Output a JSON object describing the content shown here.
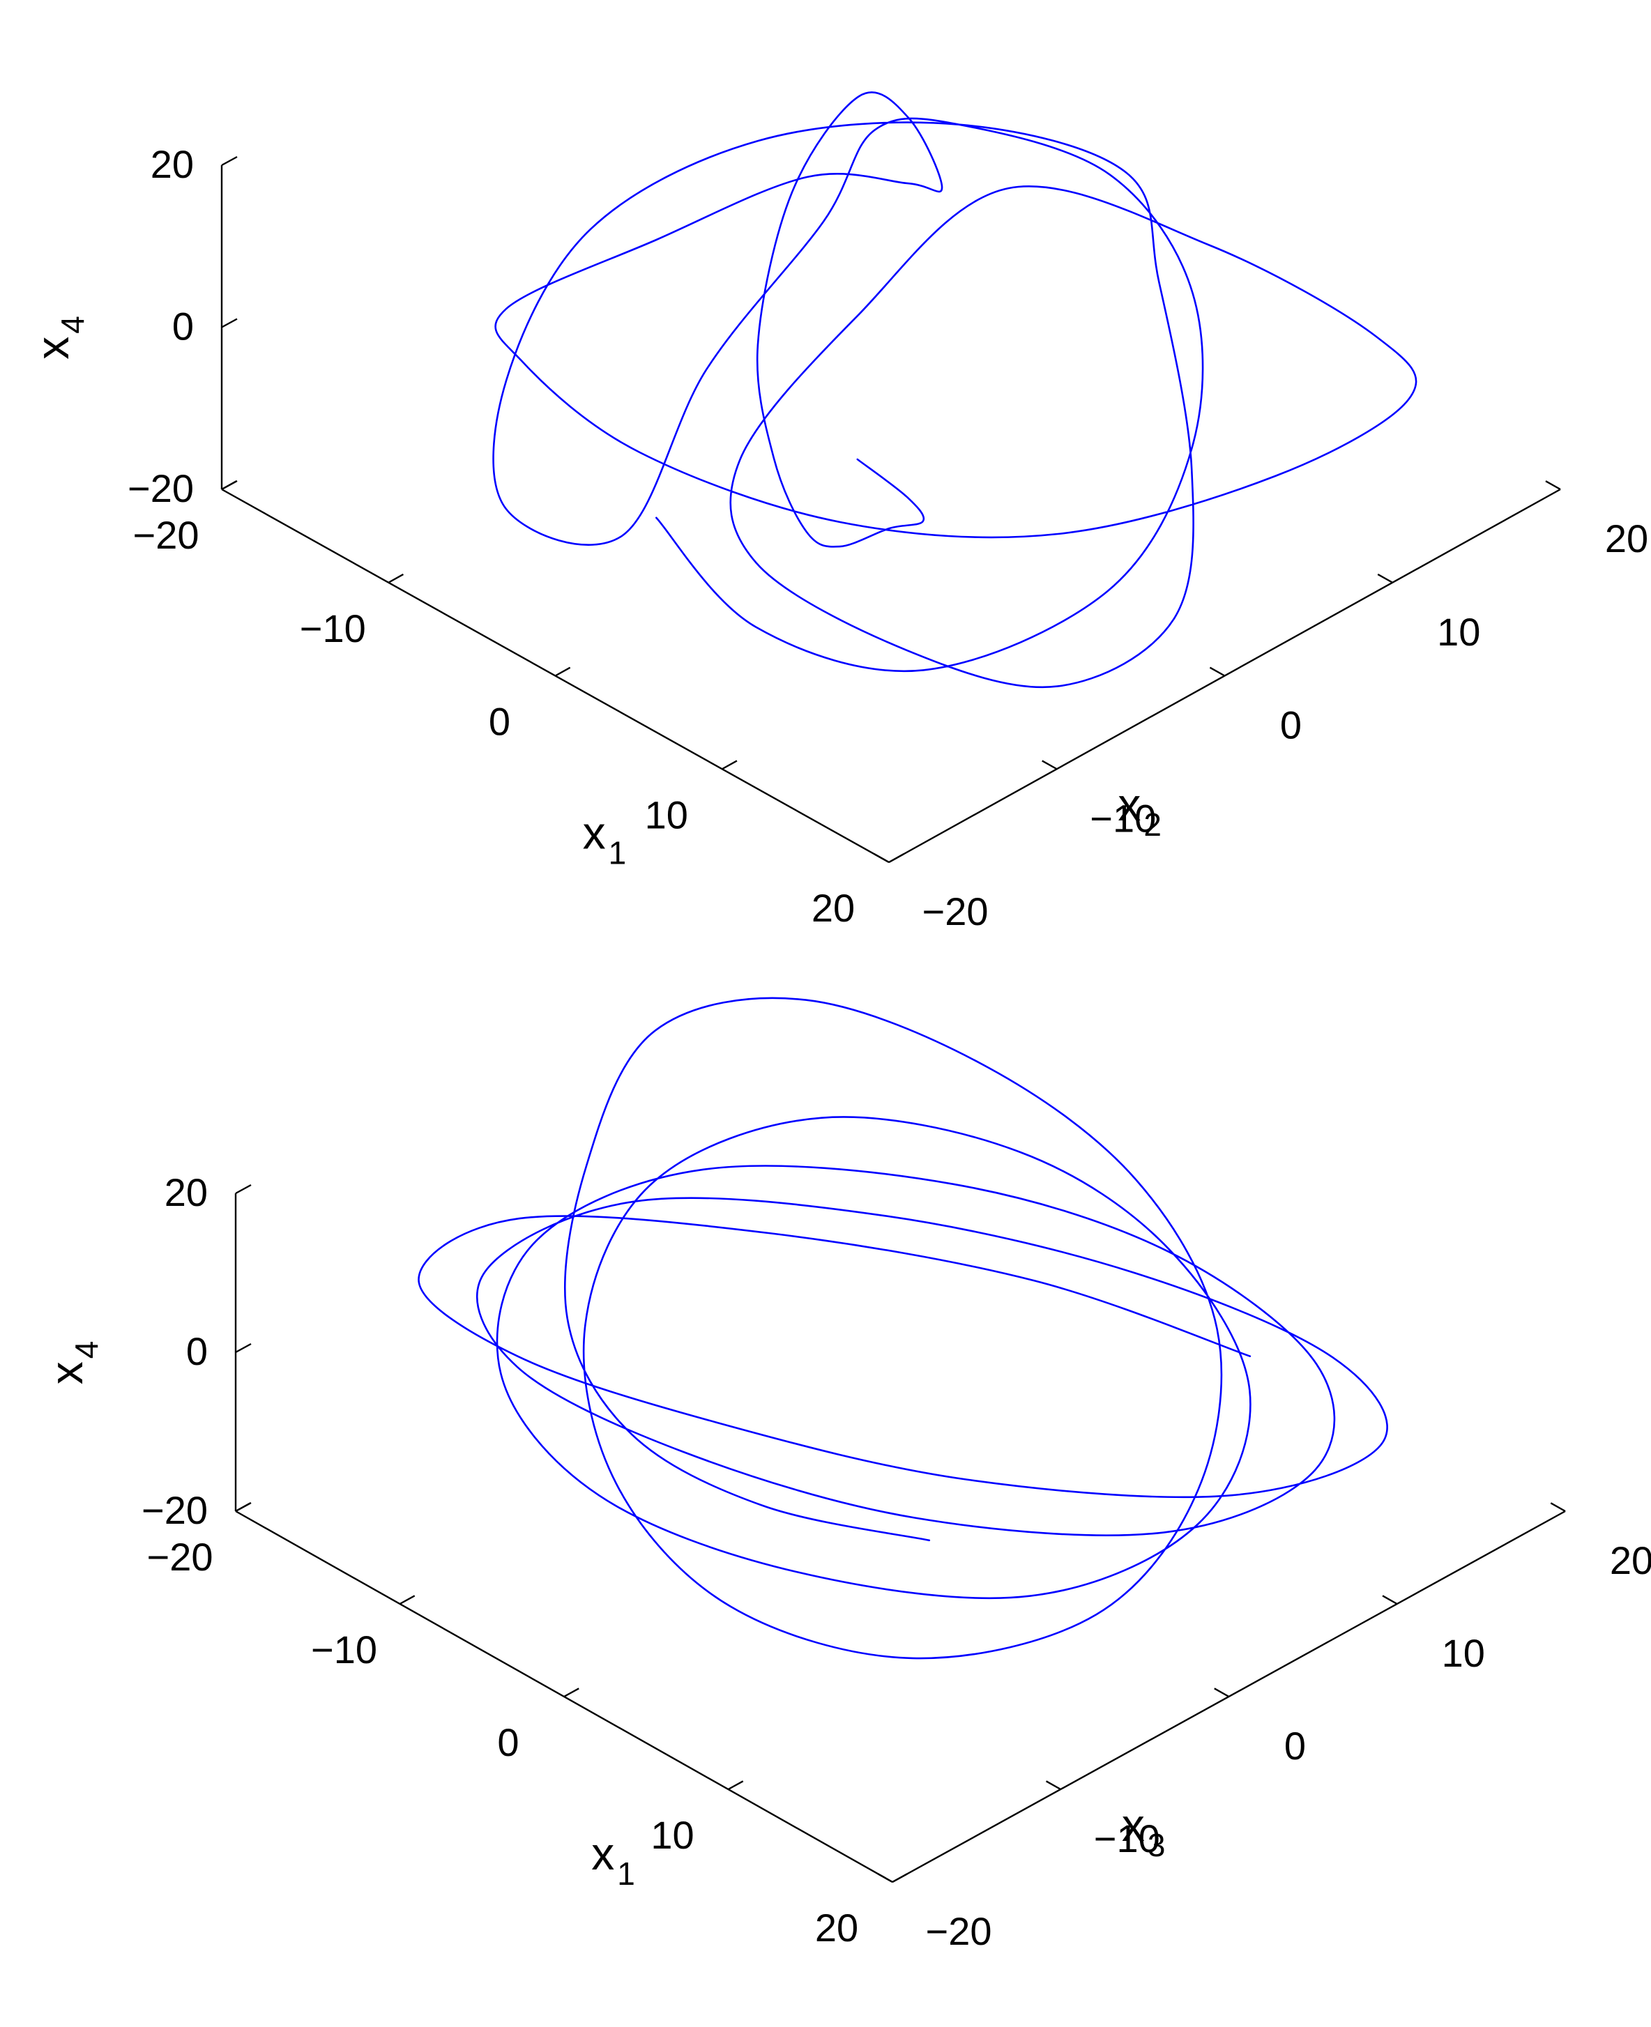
{
  "colors": {
    "trajectory": "#0000ff",
    "axes": "#000000",
    "background": "#ffffff"
  },
  "chart_data": [
    {
      "type": "line",
      "dimensions": 3,
      "view": "isometric",
      "xlabel": {
        "main": "x",
        "sub": "1"
      },
      "ylabel": {
        "main": "x",
        "sub": "2"
      },
      "zlabel": {
        "main": "x",
        "sub": "4"
      },
      "xlim": [
        -20,
        20
      ],
      "ylim": [
        -20,
        20
      ],
      "zlim": [
        -20,
        20
      ],
      "x_ticks": [
        "−20",
        "−10",
        "0",
        "10",
        "20"
      ],
      "y_ticks": [
        "−20",
        "−10",
        "0",
        "10",
        "20"
      ],
      "z_ticks": [
        "−20",
        "0",
        "20"
      ],
      "grid": false,
      "series": [
        {
          "shape": "chaotic trajectory, two mirror-symmetric lobes",
          "x": [
            -2,
            6,
            12,
            15,
            12,
            5,
            -3,
            -8,
            -5,
            1,
            2,
            1,
            -7,
            -13,
            -16,
            -14,
            -8,
            0,
            6,
            14,
            18,
            16,
            10,
            3,
            0,
            1,
            3,
            9,
            15,
            18,
            16,
            10,
            2,
            -6,
            -10,
            -9,
            -3,
            -1,
            -2,
            -6,
            -12,
            -16,
            -15,
            -10,
            -3,
            5,
            12,
            16,
            14,
            7,
            0
          ],
          "y": [
            -12,
            -14,
            -10,
            -2,
            6,
            13,
            16,
            12,
            4,
            -5,
            -13,
            -17,
            -16,
            -10,
            -2,
            6,
            12,
            14,
            10,
            4,
            -1,
            -6,
            -9,
            -11,
            -9,
            -3,
            4,
            10,
            14,
            13,
            7,
            0,
            -5,
            -9,
            -12,
            -14,
            -11,
            -4,
            3,
            9,
            13,
            14,
            9,
            2,
            -4,
            -10,
            -15,
            -16,
            -12,
            -6,
            -2
          ],
          "z": [
            -12,
            -14,
            -17,
            -13,
            -8,
            -5,
            -3,
            2,
            14,
            20,
            12,
            -5,
            -12,
            -10,
            -4,
            0,
            2,
            3,
            1,
            -6,
            -14,
            -19,
            -18,
            -13,
            -6,
            6,
            16,
            9,
            0,
            -3,
            -8,
            -14,
            -16,
            -12,
            -2,
            8,
            20,
            22,
            12,
            0,
            -3,
            -6,
            -11,
            -16,
            -15,
            -8,
            4,
            12,
            6,
            -6,
            -14
          ]
        }
      ]
    },
    {
      "type": "line",
      "dimensions": 3,
      "view": "isometric",
      "xlabel": {
        "main": "x",
        "sub": "1"
      },
      "ylabel": {
        "main": "x",
        "sub": "3"
      },
      "zlabel": {
        "main": "x",
        "sub": "4"
      },
      "xlim": [
        -20,
        20
      ],
      "ylim": [
        -20,
        20
      ],
      "zlim": [
        -20,
        20
      ],
      "x_ticks": [
        "−20",
        "−10",
        "0",
        "10",
        "20"
      ],
      "y_ticks": [
        "−20",
        "−10",
        "0",
        "10",
        "20"
      ],
      "z_ticks": [
        "−20",
        "0",
        "20"
      ],
      "grid": false,
      "series": [
        {
          "shape": "chaotic trajectory, single tangled ball",
          "x": [
            12,
            6,
            -1,
            -8,
            -14,
            -18,
            -16,
            -9,
            -1,
            7,
            13,
            15,
            11,
            4,
            -4,
            -11,
            -15,
            -13,
            -6,
            2,
            10,
            14,
            12,
            5,
            -3,
            -10,
            -14,
            -12,
            -5,
            3,
            11,
            15,
            13,
            6,
            -2,
            -9,
            -13,
            -11,
            -4,
            4,
            12,
            16,
            13,
            5,
            -3,
            -10,
            -15,
            -14,
            -7,
            1,
            9
          ],
          "y": [
            -10,
            -14,
            -15,
            -12,
            -5,
            3,
            10,
            14,
            15,
            12,
            5,
            -3,
            -10,
            -14,
            -13,
            -8,
            0,
            8,
            13,
            14,
            11,
            4,
            -4,
            -11,
            -15,
            -14,
            -8,
            0,
            8,
            13,
            14,
            10,
            3,
            -5,
            -11,
            -14,
            -12,
            -5,
            3,
            10,
            14,
            13,
            7,
            -1,
            -8,
            -13,
            -14,
            -9,
            -1,
            7,
            12
          ],
          "z": [
            2,
            4,
            6,
            9,
            13,
            16,
            14,
            9,
            3,
            -3,
            -8,
            -12,
            -14,
            -11,
            -6,
            0,
            4,
            5,
            3,
            -1,
            -6,
            -10,
            -12,
            -9,
            -4,
            2,
            7,
            9,
            6,
            1,
            -5,
            -9,
            -11,
            -8,
            -2,
            4,
            9,
            12,
            9,
            3,
            -3,
            -8,
            -11,
            -9,
            -3,
            3,
            8,
            11,
            8,
            2,
            -4
          ]
        }
      ]
    }
  ]
}
